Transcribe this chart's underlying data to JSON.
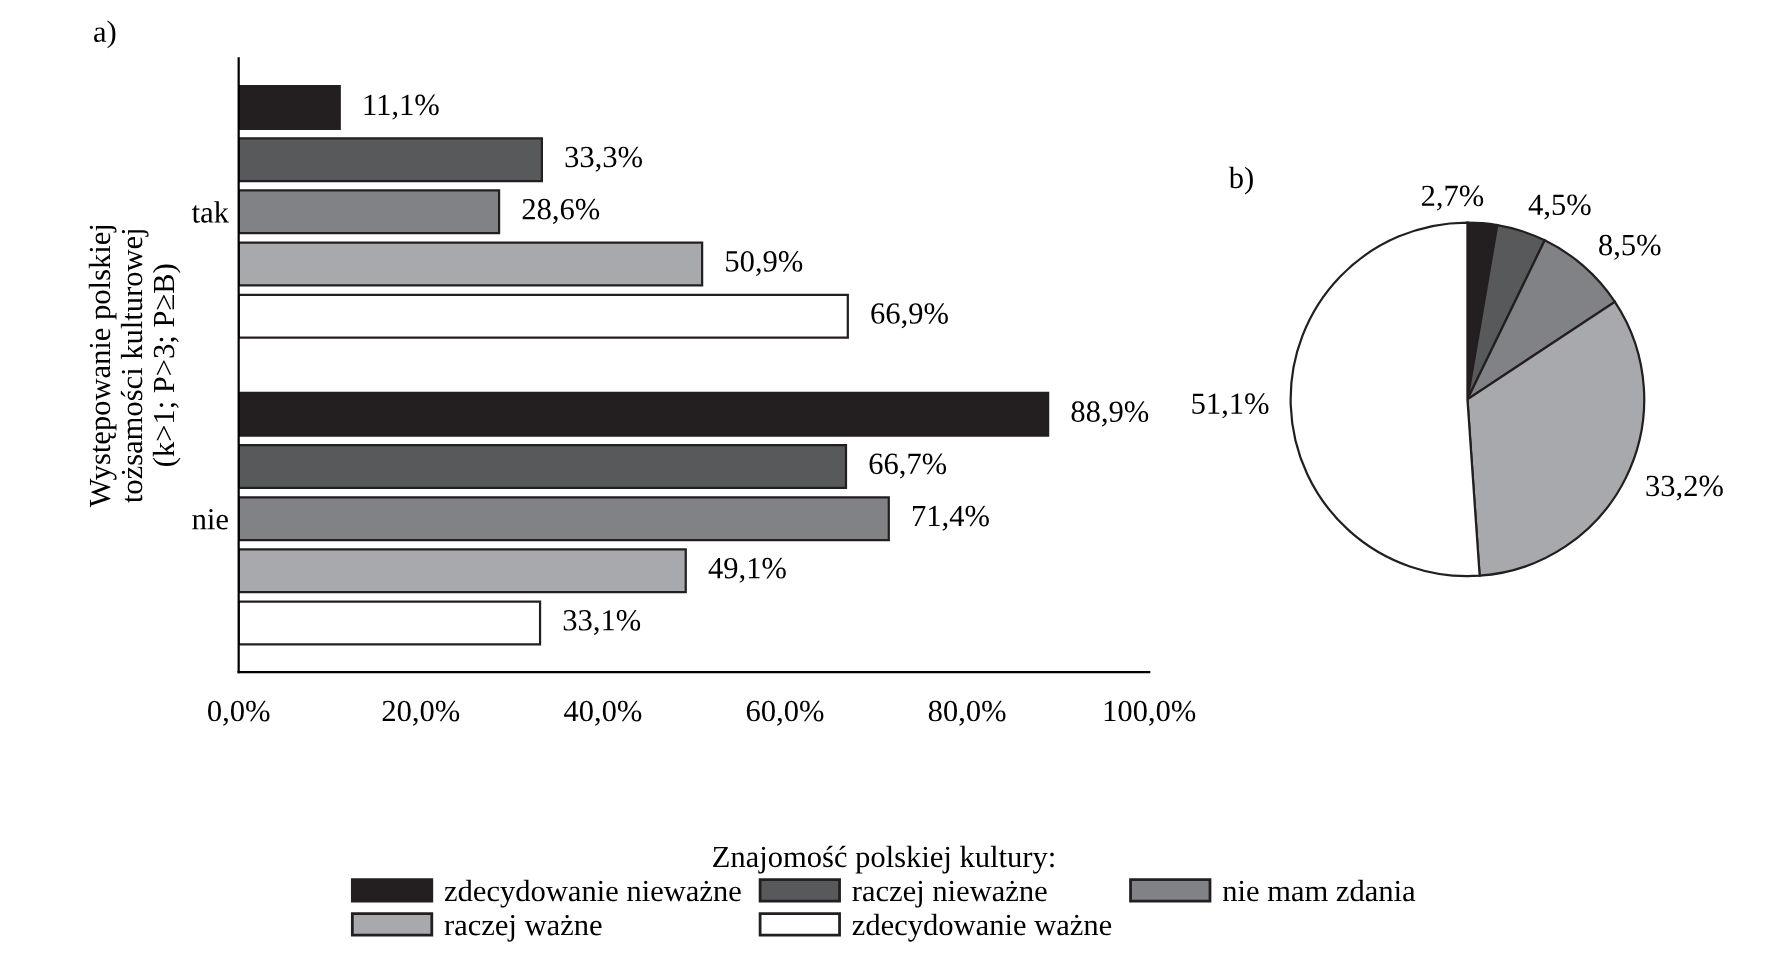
{
  "chart_data": [
    {
      "type": "bar",
      "title": "a)",
      "orientation": "horizontal",
      "ylabel": "Występowanie polskiej\ntożsamości kulturowej\n(k>1; P>3; P≥B)",
      "legend_title": "Znajomość polskiej kultury:",
      "legend": "bottom",
      "categories": [
        "tak",
        "nie"
      ],
      "series": [
        {
          "name": "zdecydowanie nieważne",
          "color": "#231f20",
          "values": [
            11.1,
            88.9
          ]
        },
        {
          "name": "raczej nieważne",
          "color": "#58595b",
          "values": [
            33.3,
            66.7
          ]
        },
        {
          "name": "nie mam zdania",
          "color": "#808285",
          "values": [
            28.6,
            71.4
          ]
        },
        {
          "name": "raczej ważne",
          "color": "#a7a9ac",
          "values": [
            50.9,
            49.1
          ]
        },
        {
          "name": "zdecydowanie ważne",
          "color": "#ffffff",
          "values": [
            66.9,
            33.1
          ]
        }
      ],
      "value_labels": [
        [
          "11,1%",
          "88,9%"
        ],
        [
          "33,3%",
          "66,7%"
        ],
        [
          "28,6%",
          "71,4%"
        ],
        [
          "50,9%",
          "49,1%"
        ],
        [
          "66,9%",
          "33,1%"
        ]
      ],
      "xlim": [
        0,
        100
      ],
      "xticks": [
        {
          "value": 0,
          "label": "0,0%"
        },
        {
          "value": 20,
          "label": "20,0%"
        },
        {
          "value": 40,
          "label": "40,0%"
        },
        {
          "value": 60,
          "label": "60,0%"
        },
        {
          "value": 80,
          "label": "80,0%"
        },
        {
          "value": 100,
          "label": "100,0%"
        }
      ],
      "grid": false
    },
    {
      "type": "pie",
      "title": "b)",
      "categories": [
        null,
        null,
        null,
        null,
        null
      ],
      "values": [
        2.7,
        4.5,
        8.5,
        33.2,
        51.1
      ],
      "colors": [
        "#231f20",
        "#58595b",
        "#808285",
        "#a7a9ac",
        "#ffffff"
      ],
      "value_labels": [
        "2,7%",
        "4,5%",
        "8,5%",
        "33,2%",
        "51,1%"
      ]
    }
  ]
}
